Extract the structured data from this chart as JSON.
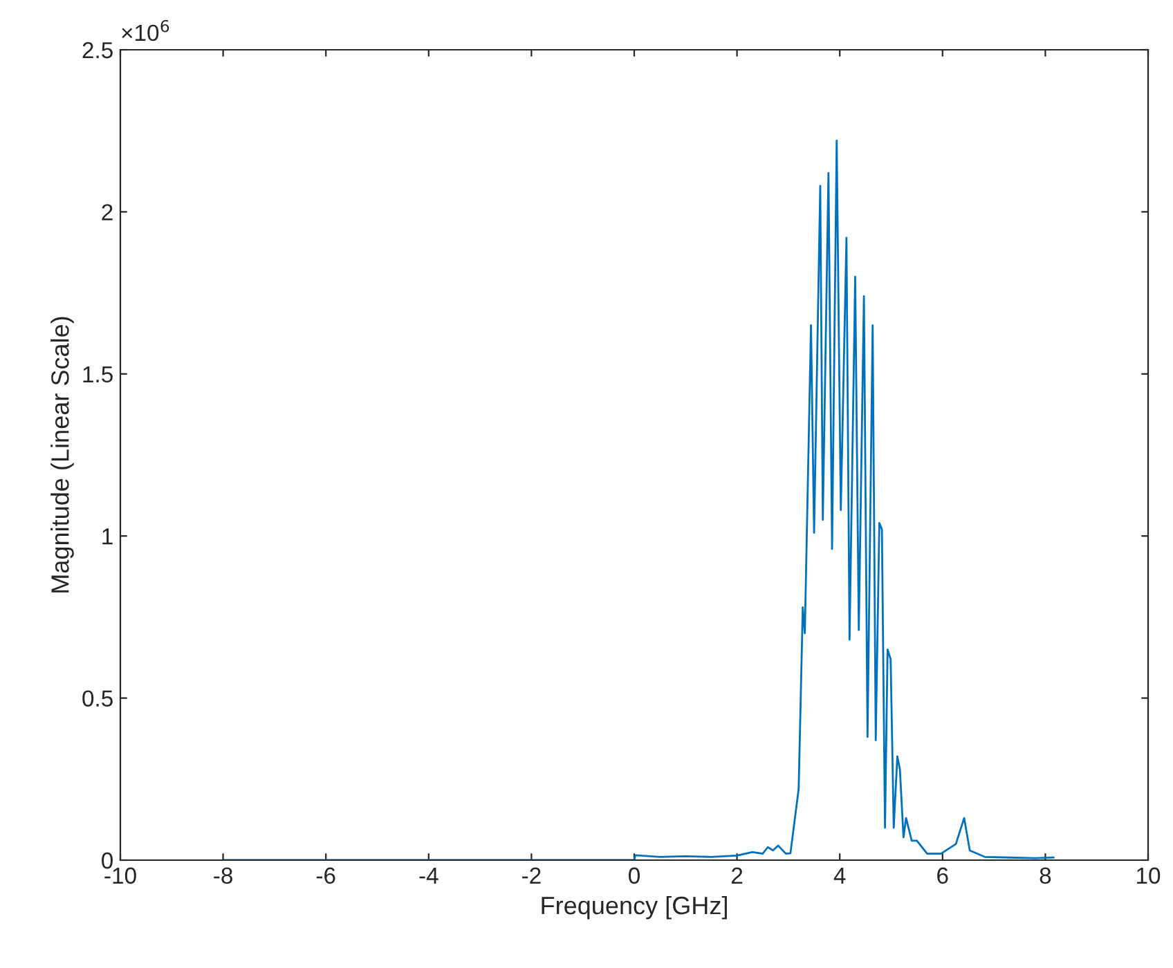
{
  "chart_data": {
    "type": "line",
    "xlabel": "Frequency [GHz]",
    "ylabel": "Magnitude (Linear Scale)",
    "annotations": [
      "×10$^{6}$"
    ],
    "xlim": [
      -10,
      10
    ],
    "xticks": [
      -10,
      -8,
      -6,
      -4,
      -2,
      0,
      2,
      4,
      6,
      8,
      10
    ],
    "ylim": [
      0,
      2.5
    ],
    "yticks": [
      0,
      0.5,
      1,
      1.5,
      2,
      2.5
    ],
    "grid": false,
    "marker": "none",
    "line_style": "solid",
    "series": [
      {
        "color": "#0072bd",
        "x": [
          -8,
          -4,
          0,
          0.02,
          0.5,
          1.0,
          1.5,
          2.0,
          2.3,
          2.5,
          2.6,
          2.7,
          2.8,
          2.95,
          3.04,
          3.2,
          3.28,
          3.32,
          3.44,
          3.5,
          3.62,
          3.67,
          3.78,
          3.85,
          3.94,
          4.02,
          4.13,
          4.19,
          4.3,
          4.37,
          4.47,
          4.54,
          4.64,
          4.7,
          4.77,
          4.82,
          4.88,
          4.93,
          4.99,
          5.05,
          5.12,
          5.17,
          5.24,
          5.29,
          5.4,
          5.5,
          5.7,
          5.97,
          6.26,
          6.42,
          6.53,
          6.82,
          7.3,
          7.8,
          8.16
        ],
        "values": [
          0,
          0,
          0,
          0.015,
          0.01,
          0.012,
          0.01,
          0.014,
          0.025,
          0.02,
          0.04,
          0.03,
          0.045,
          0.02,
          0.021,
          0.22,
          0.78,
          0.7,
          1.65,
          1.01,
          2.08,
          1.05,
          2.12,
          0.96,
          2.22,
          1.08,
          1.92,
          0.68,
          1.8,
          0.71,
          1.74,
          0.38,
          1.65,
          0.37,
          1.04,
          1.02,
          0.1,
          0.65,
          0.62,
          0.1,
          0.32,
          0.28,
          0.07,
          0.13,
          0.06,
          0.06,
          0.02,
          0.02,
          0.05,
          0.13,
          0.03,
          0.01,
          0.008,
          0.006,
          0.008
        ]
      }
    ]
  }
}
